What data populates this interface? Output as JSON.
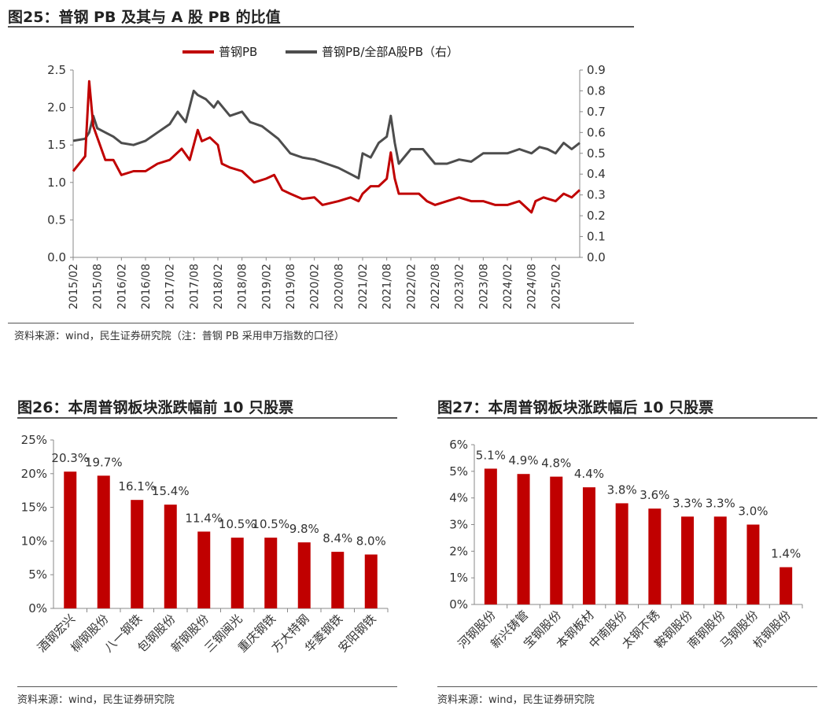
{
  "figures": [
    {
      "title": "图25：普钢 PB 及其与 A 股 PB 的比值",
      "source": "资料来源：wind，民生证券研究院（注：普钢 PB 采用申万指数的口径）"
    },
    {
      "title": "图26：本周普钢板块涨跌幅前 10 只股票",
      "source": "资料来源：wind，民生证券研究院"
    },
    {
      "title": "图27：本周普钢板块涨跌幅后 10 只股票",
      "source": "资料来源：wind，民生证券研究院"
    }
  ],
  "chart_data": [
    {
      "type": "line",
      "title": "",
      "x_ticks": [
        "2015/02",
        "2015/08",
        "2016/02",
        "2016/08",
        "2017/02",
        "2017/08",
        "2018/02",
        "2018/08",
        "2019/02",
        "2019/08",
        "2020/02",
        "2020/08",
        "2021/02",
        "2021/08",
        "2022/02",
        "2022/08",
        "2023/02",
        "2023/08",
        "2024/02",
        "2024/08",
        "2025/02"
      ],
      "y_left": {
        "min": 0,
        "max": 2.5,
        "ticks": [
          "0.0",
          "0.5",
          "1.0",
          "1.5",
          "2.0",
          "2.5"
        ]
      },
      "y_right": {
        "min": 0,
        "max": 0.9,
        "ticks": [
          "0.0",
          "0.1",
          "0.2",
          "0.3",
          "0.4",
          "0.5",
          "0.6",
          "0.7",
          "0.8",
          "0.9"
        ]
      },
      "legend": {
        "placement": "top-center"
      },
      "series": [
        {
          "name": "普钢PB",
          "axis": "left",
          "color": "#C00000",
          "points": [
            [
              "2015/02",
              1.15
            ],
            [
              "2015/05",
              1.35
            ],
            [
              "2015/06",
              2.35
            ],
            [
              "2015/07",
              1.75
            ],
            [
              "2015/08",
              1.6
            ],
            [
              "2015/10",
              1.3
            ],
            [
              "2015/12",
              1.3
            ],
            [
              "2016/02",
              1.1
            ],
            [
              "2016/05",
              1.15
            ],
            [
              "2016/08",
              1.15
            ],
            [
              "2016/11",
              1.25
            ],
            [
              "2017/02",
              1.3
            ],
            [
              "2017/05",
              1.45
            ],
            [
              "2017/07",
              1.3
            ],
            [
              "2017/08",
              1.5
            ],
            [
              "2017/09",
              1.7
            ],
            [
              "2017/10",
              1.55
            ],
            [
              "2017/12",
              1.6
            ],
            [
              "2018/02",
              1.5
            ],
            [
              "2018/03",
              1.25
            ],
            [
              "2018/05",
              1.2
            ],
            [
              "2018/08",
              1.15
            ],
            [
              "2018/11",
              1.0
            ],
            [
              "2019/02",
              1.05
            ],
            [
              "2019/04",
              1.1
            ],
            [
              "2019/06",
              0.9
            ],
            [
              "2019/08",
              0.85
            ],
            [
              "2019/11",
              0.78
            ],
            [
              "2020/02",
              0.8
            ],
            [
              "2020/04",
              0.7
            ],
            [
              "2020/08",
              0.75
            ],
            [
              "2020/11",
              0.8
            ],
            [
              "2021/01",
              0.75
            ],
            [
              "2021/02",
              0.85
            ],
            [
              "2021/04",
              0.95
            ],
            [
              "2021/06",
              0.95
            ],
            [
              "2021/08",
              1.05
            ],
            [
              "2021/09",
              1.4
            ],
            [
              "2021/10",
              1.05
            ],
            [
              "2021/11",
              0.85
            ],
            [
              "2022/02",
              0.85
            ],
            [
              "2022/04",
              0.85
            ],
            [
              "2022/06",
              0.75
            ],
            [
              "2022/08",
              0.7
            ],
            [
              "2022/11",
              0.75
            ],
            [
              "2023/02",
              0.8
            ],
            [
              "2023/05",
              0.75
            ],
            [
              "2023/08",
              0.75
            ],
            [
              "2023/11",
              0.7
            ],
            [
              "2024/02",
              0.7
            ],
            [
              "2024/05",
              0.75
            ],
            [
              "2024/08",
              0.6
            ],
            [
              "2024/09",
              0.75
            ],
            [
              "2024/11",
              0.8
            ],
            [
              "2025/02",
              0.75
            ],
            [
              "2025/04",
              0.85
            ],
            [
              "2025/06",
              0.8
            ],
            [
              "2025/08",
              0.9
            ]
          ]
        },
        {
          "name": "普钢PB/全部A股PB（右）",
          "axis": "right",
          "color": "#4D4D4D",
          "points": [
            [
              "2015/02",
              0.56
            ],
            [
              "2015/05",
              0.57
            ],
            [
              "2015/06",
              0.6
            ],
            [
              "2015/07",
              0.68
            ],
            [
              "2015/08",
              0.62
            ],
            [
              "2015/10",
              0.6
            ],
            [
              "2015/12",
              0.58
            ],
            [
              "2016/02",
              0.55
            ],
            [
              "2016/05",
              0.54
            ],
            [
              "2016/08",
              0.56
            ],
            [
              "2016/11",
              0.6
            ],
            [
              "2017/02",
              0.64
            ],
            [
              "2017/04",
              0.7
            ],
            [
              "2017/06",
              0.65
            ],
            [
              "2017/08",
              0.8
            ],
            [
              "2017/09",
              0.78
            ],
            [
              "2017/11",
              0.76
            ],
            [
              "2018/01",
              0.72
            ],
            [
              "2018/02",
              0.75
            ],
            [
              "2018/05",
              0.68
            ],
            [
              "2018/08",
              0.7
            ],
            [
              "2018/10",
              0.65
            ],
            [
              "2019/01",
              0.63
            ],
            [
              "2019/03",
              0.6
            ],
            [
              "2019/05",
              0.57
            ],
            [
              "2019/08",
              0.5
            ],
            [
              "2019/11",
              0.48
            ],
            [
              "2020/02",
              0.47
            ],
            [
              "2020/05",
              0.45
            ],
            [
              "2020/08",
              0.43
            ],
            [
              "2020/11",
              0.4
            ],
            [
              "2021/01",
              0.38
            ],
            [
              "2021/02",
              0.5
            ],
            [
              "2021/04",
              0.48
            ],
            [
              "2021/06",
              0.55
            ],
            [
              "2021/08",
              0.58
            ],
            [
              "2021/09",
              0.68
            ],
            [
              "2021/10",
              0.55
            ],
            [
              "2021/11",
              0.45
            ],
            [
              "2022/02",
              0.52
            ],
            [
              "2022/05",
              0.52
            ],
            [
              "2022/08",
              0.45
            ],
            [
              "2022/11",
              0.45
            ],
            [
              "2023/02",
              0.47
            ],
            [
              "2023/05",
              0.46
            ],
            [
              "2023/08",
              0.5
            ],
            [
              "2023/11",
              0.5
            ],
            [
              "2024/02",
              0.5
            ],
            [
              "2024/05",
              0.52
            ],
            [
              "2024/08",
              0.5
            ],
            [
              "2024/10",
              0.53
            ],
            [
              "2024/12",
              0.52
            ],
            [
              "2025/02",
              0.5
            ],
            [
              "2025/04",
              0.55
            ],
            [
              "2025/06",
              0.52
            ],
            [
              "2025/08",
              0.55
            ]
          ]
        }
      ]
    },
    {
      "type": "bar",
      "title": "",
      "categories": [
        "酒钢宏兴",
        "柳钢股份",
        "八一钢铁",
        "包钢股份",
        "新钢股份",
        "三钢闽光",
        "重庆钢铁",
        "方大特钢",
        "华菱钢铁",
        "安阳钢铁"
      ],
      "values": [
        20.3,
        19.7,
        16.1,
        15.4,
        11.4,
        10.5,
        10.5,
        9.8,
        8.4,
        8.0
      ],
      "data_labels": [
        "20.3%",
        "19.7%",
        "16.1%",
        "15.4%",
        "11.4%",
        "10.5%",
        "10.5%",
        "9.8%",
        "8.4%",
        "8.0%"
      ],
      "ylim": [
        0,
        25
      ],
      "yticks": [
        "0%",
        "5%",
        "10%",
        "15%",
        "20%",
        "25%"
      ],
      "color": "#C00000"
    },
    {
      "type": "bar",
      "title": "",
      "categories": [
        "河钢股份",
        "新兴铸管",
        "宝钢股份",
        "本钢板材",
        "中南股份",
        "太钢不锈",
        "鞍钢股份",
        "南钢股份",
        "马钢股份",
        "杭钢股份"
      ],
      "values": [
        5.1,
        4.9,
        4.8,
        4.4,
        3.8,
        3.6,
        3.3,
        3.3,
        3.0,
        1.4
      ],
      "data_labels": [
        "5.1%",
        "4.9%",
        "4.8%",
        "4.4%",
        "3.8%",
        "3.6%",
        "3.3%",
        "3.3%",
        "3.0%",
        "1.4%"
      ],
      "ylim": [
        0,
        6
      ],
      "yticks": [
        "0%",
        "1%",
        "2%",
        "3%",
        "4%",
        "5%",
        "6%"
      ],
      "color": "#C00000"
    }
  ]
}
